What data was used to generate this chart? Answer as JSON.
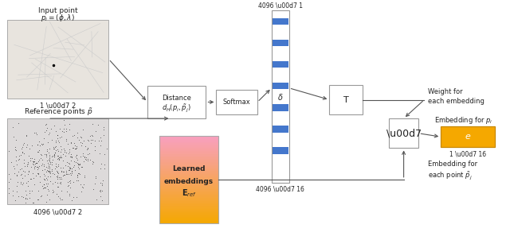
{
  "fig_width": 6.4,
  "fig_height": 2.97,
  "dpi": 100,
  "bg_color": "#ffffff",
  "input_label": "Input point",
  "input_formula": "$p_i = (\\phi, \\lambda)$",
  "input_size": "1 \\u00d7 2",
  "ref_label": "Reference points $\\tilde{p}$",
  "ref_size": "4096 \\u00d7 2",
  "distance_label1": "Distance",
  "distance_label2": "$d_H(p_i, \\tilde{p}_j)$",
  "softmax_label": "Softmax",
  "delta_label": "$\\delta$",
  "delta_size_top": "4096 \\u00d7 1",
  "delta_size_bot": "4096 \\u00d7 16",
  "T_label": "T",
  "mult_label": "\\u00d7",
  "emb_label1": "Learned",
  "emb_label2": "embeddings",
  "emb_label3": "$\\mathbf{E}_{ref}$",
  "result_color": "#f5a800",
  "result_label": "$e$",
  "result_size": "1 \\u00d7 16",
  "weight_text": "Weight for\neach embedding",
  "embed_text": "Embedding for\neach point $\\tilde{p}_j$",
  "embed_pi_text": "Embedding for $p_i$",
  "arrow_color": "#555555",
  "box_edge_color": "#999999",
  "text_color": "#222222",
  "blue_stripe": "#4477cc"
}
